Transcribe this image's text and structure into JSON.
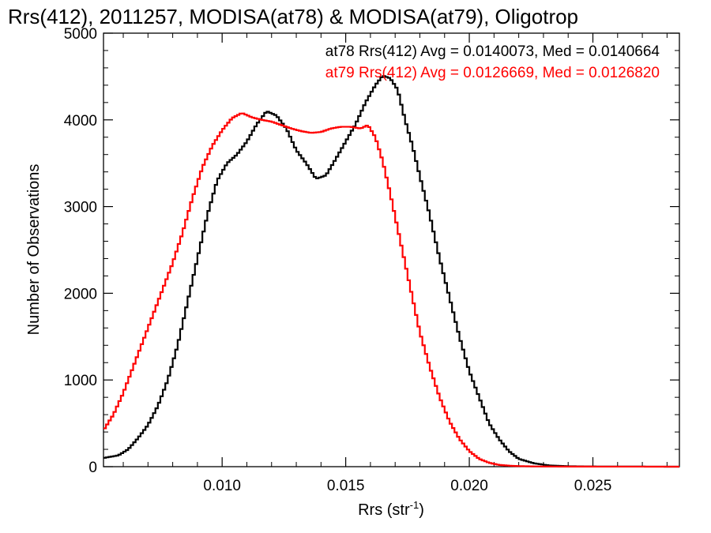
{
  "chart_data": {
    "type": "line",
    "title": "Rrs(412), 2011257, MODISA(at78) & MODISA(at79), Oligotrop",
    "xlabel": "Rrs (str",
    "xlabel_sup": "-1",
    "xlabel_close": ")",
    "ylabel": "Number of Observations",
    "xlim": [
      0.0052,
      0.0285
    ],
    "ylim": [
      0,
      5000
    ],
    "x_ticks": [
      {
        "value": 0.01,
        "label": "0.010"
      },
      {
        "value": 0.015,
        "label": "0.015"
      },
      {
        "value": 0.02,
        "label": "0.020"
      },
      {
        "value": 0.025,
        "label": "0.025"
      }
    ],
    "y_ticks": [
      {
        "value": 0,
        "label": "0"
      },
      {
        "value": 1000,
        "label": "1000"
      },
      {
        "value": 2000,
        "label": "2000"
      },
      {
        "value": 3000,
        "label": "3000"
      },
      {
        "value": 4000,
        "label": "4000"
      },
      {
        "value": 5000,
        "label": "5000"
      }
    ],
    "legend_position": "top-right",
    "series": [
      {
        "name": "at78 Rrs(412) Avg = 0.0140073, Med = 0.0140664",
        "color": "#000000",
        "points": [
          [
            0.0052,
            100
          ],
          [
            0.0058,
            130
          ],
          [
            0.0062,
            200
          ],
          [
            0.0066,
            330
          ],
          [
            0.007,
            480
          ],
          [
            0.0074,
            700
          ],
          [
            0.0078,
            1000
          ],
          [
            0.0082,
            1400
          ],
          [
            0.0086,
            1900
          ],
          [
            0.009,
            2400
          ],
          [
            0.0094,
            2900
          ],
          [
            0.0098,
            3300
          ],
          [
            0.0102,
            3500
          ],
          [
            0.0106,
            3600
          ],
          [
            0.011,
            3750
          ],
          [
            0.0114,
            3950
          ],
          [
            0.0118,
            4100
          ],
          [
            0.0122,
            4050
          ],
          [
            0.0126,
            3900
          ],
          [
            0.013,
            3650
          ],
          [
            0.0134,
            3500
          ],
          [
            0.0138,
            3320
          ],
          [
            0.0142,
            3360
          ],
          [
            0.0146,
            3550
          ],
          [
            0.015,
            3750
          ],
          [
            0.0154,
            3950
          ],
          [
            0.0158,
            4200
          ],
          [
            0.0162,
            4400
          ],
          [
            0.0165,
            4510
          ],
          [
            0.0168,
            4480
          ],
          [
            0.0171,
            4350
          ],
          [
            0.0174,
            4000
          ],
          [
            0.0177,
            3700
          ],
          [
            0.018,
            3350
          ],
          [
            0.0184,
            2900
          ],
          [
            0.0188,
            2400
          ],
          [
            0.0192,
            1950
          ],
          [
            0.0196,
            1500
          ],
          [
            0.02,
            1100
          ],
          [
            0.0204,
            800
          ],
          [
            0.0208,
            500
          ],
          [
            0.0212,
            320
          ],
          [
            0.0216,
            180
          ],
          [
            0.022,
            90
          ],
          [
            0.0226,
            40
          ],
          [
            0.0232,
            15
          ],
          [
            0.024,
            5
          ],
          [
            0.025,
            2
          ],
          [
            0.0285,
            0
          ]
        ]
      },
      {
        "name": "at79 Rrs(412) Avg = 0.0126669, Med = 0.0126820",
        "color": "#ff0000",
        "points": [
          [
            0.0052,
            420
          ],
          [
            0.0056,
            600
          ],
          [
            0.006,
            850
          ],
          [
            0.0064,
            1150
          ],
          [
            0.0068,
            1450
          ],
          [
            0.0072,
            1750
          ],
          [
            0.0076,
            2050
          ],
          [
            0.008,
            2350
          ],
          [
            0.0084,
            2700
          ],
          [
            0.0088,
            3100
          ],
          [
            0.0092,
            3450
          ],
          [
            0.0096,
            3700
          ],
          [
            0.01,
            3880
          ],
          [
            0.0104,
            4020
          ],
          [
            0.0108,
            4080
          ],
          [
            0.0112,
            4030
          ],
          [
            0.0116,
            4000
          ],
          [
            0.012,
            3980
          ],
          [
            0.0124,
            3940
          ],
          [
            0.0128,
            3900
          ],
          [
            0.0132,
            3870
          ],
          [
            0.0136,
            3850
          ],
          [
            0.014,
            3860
          ],
          [
            0.0144,
            3900
          ],
          [
            0.0148,
            3920
          ],
          [
            0.0152,
            3920
          ],
          [
            0.0156,
            3900
          ],
          [
            0.0159,
            3940
          ],
          [
            0.0162,
            3800
          ],
          [
            0.0165,
            3520
          ],
          [
            0.0168,
            3150
          ],
          [
            0.0171,
            2750
          ],
          [
            0.0174,
            2350
          ],
          [
            0.0177,
            1950
          ],
          [
            0.018,
            1550
          ],
          [
            0.0184,
            1150
          ],
          [
            0.0188,
            800
          ],
          [
            0.0192,
            520
          ],
          [
            0.0196,
            320
          ],
          [
            0.02,
            180
          ],
          [
            0.0204,
            90
          ],
          [
            0.0208,
            45
          ],
          [
            0.0212,
            20
          ],
          [
            0.0218,
            8
          ],
          [
            0.0226,
            3
          ],
          [
            0.024,
            1
          ],
          [
            0.0285,
            0
          ]
        ]
      }
    ]
  }
}
